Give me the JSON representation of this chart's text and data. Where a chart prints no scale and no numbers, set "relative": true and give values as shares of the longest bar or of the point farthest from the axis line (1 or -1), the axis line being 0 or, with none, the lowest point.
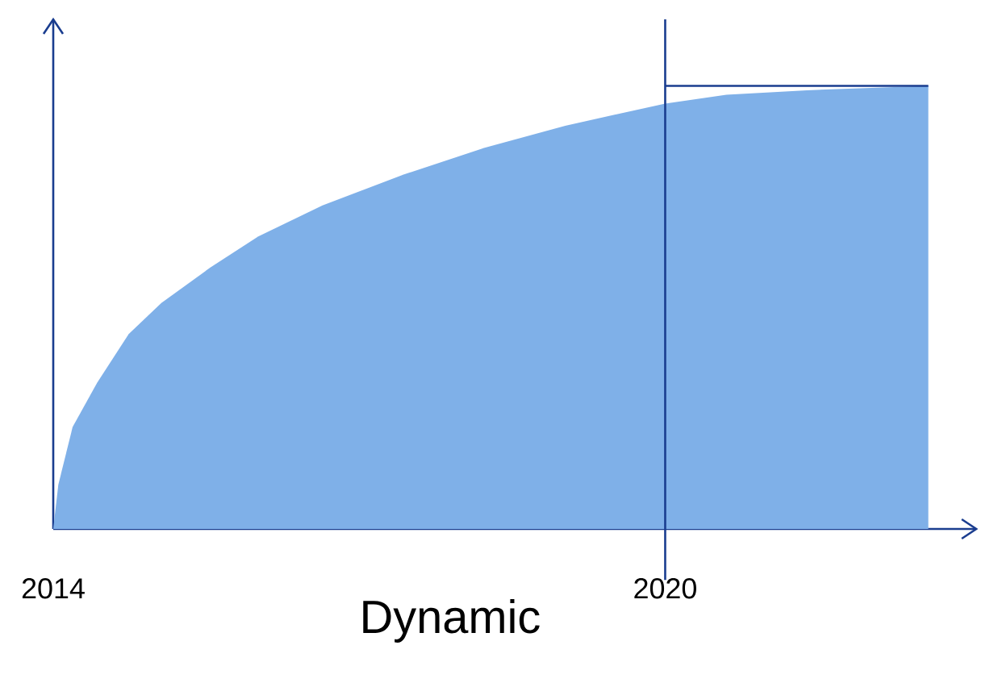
{
  "chart_data": {
    "type": "area",
    "relative": true,
    "xlabel": "Dynamic",
    "xlim": [
      2014,
      2023.05
    ],
    "xticks": [
      2014,
      2020
    ],
    "series": [
      {
        "color": "#7fb0e8",
        "x": [
          2014,
          2014.05,
          2014.19,
          2014.43,
          2014.74,
          2015.06,
          2015.54,
          2016.01,
          2016.64,
          2017.44,
          2018.23,
          2019.02,
          2020,
          2020.6,
          2021.39,
          2022.58
        ],
        "values": [
          0,
          0.1,
          0.23,
          0.33,
          0.44,
          0.51,
          0.59,
          0.66,
          0.73,
          0.8,
          0.86,
          0.91,
          0.96,
          0.98,
          0.99,
          1
        ]
      }
    ],
    "ref_lines": [
      {
        "axis": "x",
        "value": 2020,
        "color": "#1a3d8f"
      },
      {
        "axis": "y",
        "value": 1,
        "color": "#1a3d8f"
      }
    ]
  }
}
